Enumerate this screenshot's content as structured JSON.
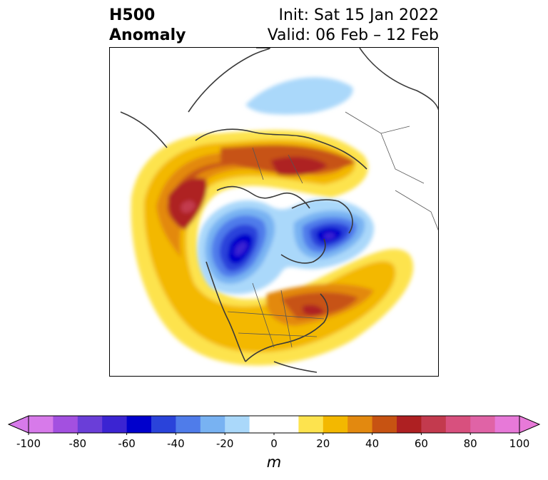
{
  "title": {
    "line1_left": "H500",
    "line2_left": "Anomaly",
    "line1_right": "Init: Sat 15 Jan 2022",
    "line2_right": "Valid: 06 Feb – 12 Feb"
  },
  "colorbar": {
    "unit": "m",
    "ticks": [
      "-100",
      "-80",
      "-60",
      "-40",
      "-20",
      "0",
      "20",
      "40",
      "60",
      "80",
      "100"
    ],
    "bins": [
      "#d77aea",
      "#a350e0",
      "#6a3ed8",
      "#3b24d2",
      "#0000cc",
      "#2a43da",
      "#4f7cea",
      "#78b2f2",
      "#aad8fa",
      "#ffffff",
      "#ffffff",
      "#fde34e",
      "#f3b800",
      "#e3890f",
      "#c75312",
      "#ae2022",
      "#c33a4e",
      "#d8507e",
      "#e063a6",
      "#e779d8"
    ],
    "under_color": "#d77aea",
    "over_color": "#e779d8"
  },
  "map": {
    "projection": "polar-stereographic-north",
    "features": [
      "coastlines",
      "country-borders",
      "state-borders"
    ],
    "anomaly_centers": [
      {
        "name": "north-pacific-ridge",
        "value": 70
      },
      {
        "name": "northern-europe-ridge",
        "value": 60
      },
      {
        "name": "eastern-us-ridge",
        "value": 60
      },
      {
        "name": "canada-trough",
        "value": -60
      },
      {
        "name": "greenland-trough",
        "value": -60
      },
      {
        "name": "siberia-trough",
        "value": -20
      }
    ]
  }
}
